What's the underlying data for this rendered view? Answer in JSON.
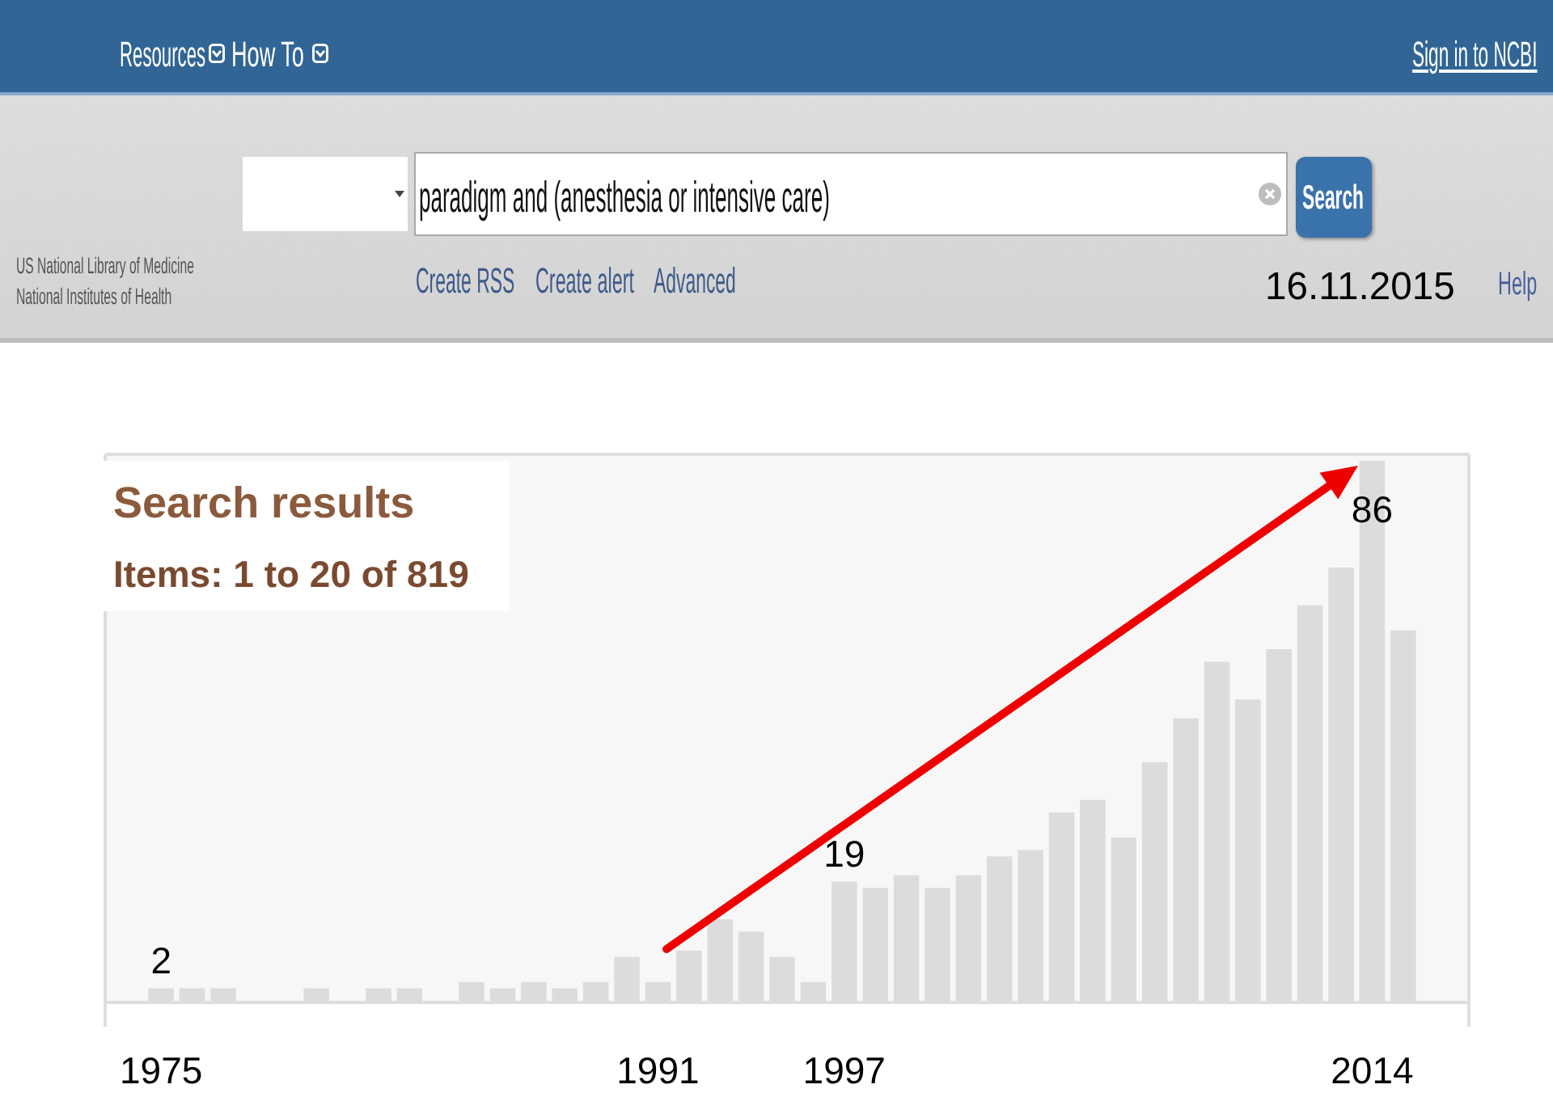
{
  "chart_data": {
    "type": "bar",
    "title": "Search results",
    "subtitle": "Items: 1 to 20 of 819",
    "categories": [
      "1975",
      null,
      null,
      null,
      null,
      null,
      null,
      null,
      null,
      null,
      null,
      null,
      null,
      null,
      null,
      null,
      "1991",
      null,
      null,
      null,
      null,
      null,
      "1997",
      null,
      null,
      null,
      null,
      null,
      null,
      null,
      null,
      null,
      null,
      null,
      null,
      null,
      null,
      null,
      null,
      "2014",
      null
    ],
    "values": [
      2,
      2,
      2,
      0,
      0,
      2,
      0,
      2,
      2,
      0,
      3,
      2,
      3,
      2,
      3,
      7,
      3,
      8,
      13,
      11,
      7,
      3,
      19,
      18,
      20,
      18,
      20,
      23,
      24,
      30,
      32,
      26,
      38,
      45,
      54,
      48,
      56,
      63,
      69,
      86,
      59
    ],
    "value_labels": [
      "2",
      null,
      null,
      null,
      null,
      null,
      null,
      null,
      null,
      null,
      null,
      null,
      null,
      null,
      null,
      null,
      null,
      null,
      null,
      null,
      null,
      null,
      "19",
      null,
      null,
      null,
      null,
      null,
      null,
      null,
      null,
      null,
      null,
      null,
      null,
      null,
      null,
      null,
      null,
      "86",
      null
    ],
    "color": "#dcdcdc",
    "tick_labels": "x",
    "annotations": [
      "Resources",
      "How To",
      "Sign in to NCBI",
      "US National Library of Medicine",
      "National Institutes of Health",
      "paradigm and (anesthesia or intensive care)",
      "Search",
      "Create RSS",
      "Create alert",
      "Advanced",
      "16.11.2015",
      "Help"
    ]
  }
}
